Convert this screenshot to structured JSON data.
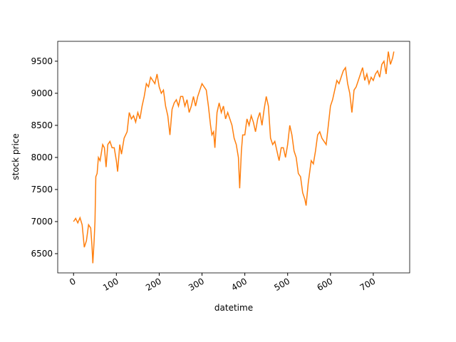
{
  "chart_data": {
    "type": "line",
    "x": [
      0,
      5,
      10,
      15,
      20,
      25,
      30,
      35,
      40,
      43,
      45,
      48,
      50,
      52,
      55,
      58,
      62,
      68,
      72,
      76,
      80,
      85,
      90,
      95,
      100,
      103,
      108,
      112,
      118,
      125,
      130,
      135,
      140,
      145,
      150,
      155,
      160,
      165,
      170,
      175,
      180,
      185,
      190,
      195,
      200,
      205,
      210,
      215,
      220,
      225,
      230,
      235,
      240,
      245,
      250,
      255,
      260,
      265,
      270,
      275,
      280,
      285,
      290,
      295,
      300,
      305,
      310,
      315,
      320,
      323,
      327,
      330,
      335,
      340,
      345,
      350,
      355,
      360,
      365,
      370,
      375,
      380,
      385,
      388,
      392,
      395,
      400,
      405,
      410,
      415,
      420,
      425,
      430,
      435,
      440,
      445,
      450,
      455,
      460,
      465,
      470,
      475,
      480,
      485,
      490,
      495,
      500,
      505,
      510,
      515,
      520,
      525,
      530,
      535,
      540,
      543,
      548,
      552,
      555,
      560,
      565,
      570,
      575,
      580,
      585,
      590,
      595,
      600,
      605,
      610,
      615,
      620,
      625,
      630,
      635,
      640,
      645,
      650,
      655,
      660,
      665,
      670,
      675,
      680,
      685,
      690,
      695,
      700,
      705,
      710,
      715,
      720,
      725,
      730,
      735,
      740,
      745,
      748
    ],
    "values": [
      7000,
      7050,
      6980,
      7060,
      6950,
      6600,
      6700,
      6950,
      6900,
      6620,
      6350,
      6700,
      7000,
      7700,
      7750,
      8000,
      7950,
      8200,
      8150,
      7850,
      8200,
      8250,
      8150,
      8150,
      7950,
      7780,
      8200,
      8050,
      8300,
      8400,
      8700,
      8600,
      8650,
      8550,
      8700,
      8600,
      8800,
      8950,
      9150,
      9100,
      9250,
      9200,
      9150,
      9300,
      9100,
      9000,
      9050,
      8800,
      8650,
      8350,
      8750,
      8850,
      8900,
      8800,
      8950,
      8950,
      8800,
      8900,
      8700,
      8800,
      8950,
      8800,
      8950,
      9050,
      9150,
      9100,
      9050,
      8800,
      8500,
      8350,
      8400,
      8150,
      8700,
      8850,
      8700,
      8800,
      8600,
      8700,
      8600,
      8500,
      8300,
      8200,
      8000,
      7520,
      8100,
      8350,
      8350,
      8600,
      8500,
      8650,
      8550,
      8400,
      8600,
      8700,
      8500,
      8750,
      8950,
      8800,
      8300,
      8200,
      8250,
      8100,
      7950,
      8150,
      8150,
      8000,
      8200,
      8500,
      8350,
      8100,
      8000,
      7750,
      7700,
      7450,
      7350,
      7250,
      7600,
      7800,
      7950,
      7900,
      8100,
      8350,
      8400,
      8300,
      8250,
      8200,
      8500,
      8800,
      8900,
      9050,
      9200,
      9150,
      9250,
      9350,
      9400,
      9150,
      9000,
      8700,
      9050,
      9100,
      9200,
      9300,
      9400,
      9200,
      9300,
      9150,
      9250,
      9200,
      9300,
      9350,
      9250,
      9450,
      9500,
      9300,
      9650,
      9450,
      9550,
      9650
    ],
    "color": "#ff7f0e",
    "xlabel": "datetime",
    "ylabel": "stock price",
    "xlim": [
      -37,
      785
    ],
    "ylim": [
      6200,
      9810
    ],
    "xticks": [
      0,
      100,
      200,
      300,
      400,
      500,
      600,
      700
    ],
    "yticks": [
      6500,
      7000,
      7500,
      8000,
      8500,
      9000,
      9500
    ]
  }
}
